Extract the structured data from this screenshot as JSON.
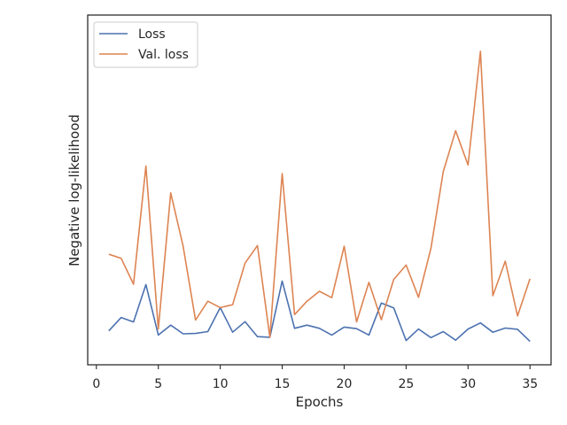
{
  "chart_data": {
    "type": "line",
    "title": "",
    "xlabel": "Epochs",
    "ylabel": "Negative log-likelihood",
    "xlim": [
      -0.7,
      36.7
    ],
    "ylim": [
      0,
      1
    ],
    "x_ticks": [
      0,
      5,
      10,
      15,
      20,
      25,
      30,
      35
    ],
    "y_ticks_shown": false,
    "grid": false,
    "legend_position": "upper-left",
    "x": [
      1,
      2,
      3,
      4,
      5,
      6,
      7,
      8,
      9,
      10,
      11,
      12,
      13,
      14,
      15,
      16,
      17,
      18,
      19,
      20,
      21,
      22,
      23,
      24,
      25,
      26,
      27,
      28,
      29,
      30,
      31,
      32,
      33,
      34,
      35
    ],
    "series": [
      {
        "name": "Loss",
        "color": "#4c72b0",
        "values": [
          0.07,
          0.112,
          0.098,
          0.215,
          0.057,
          0.088,
          0.061,
          0.062,
          0.068,
          0.143,
          0.066,
          0.099,
          0.052,
          0.05,
          0.226,
          0.078,
          0.088,
          0.078,
          0.057,
          0.082,
          0.077,
          0.057,
          0.157,
          0.142,
          0.04,
          0.076,
          0.049,
          0.068,
          0.041,
          0.076,
          0.095,
          0.066,
          0.079,
          0.075,
          0.037
        ]
      },
      {
        "name": "Val. loss",
        "color": "#dd8452",
        "values": [
          0.31,
          0.297,
          0.216,
          0.586,
          0.076,
          0.502,
          0.335,
          0.104,
          0.163,
          0.143,
          0.152,
          0.282,
          0.337,
          0.05,
          0.562,
          0.121,
          0.163,
          0.194,
          0.174,
          0.335,
          0.098,
          0.222,
          0.105,
          0.231,
          0.276,
          0.175,
          0.328,
          0.568,
          0.696,
          0.589,
          0.945,
          0.18,
          0.288,
          0.117,
          0.233
        ]
      }
    ]
  }
}
